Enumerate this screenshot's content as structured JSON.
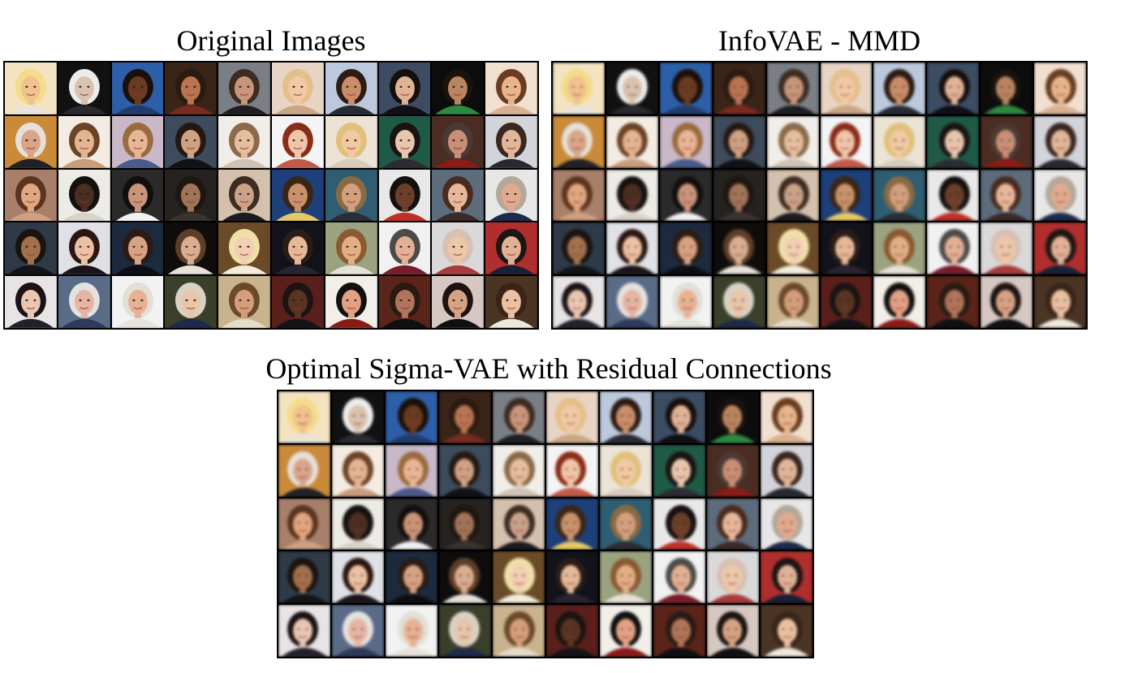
{
  "panels": [
    {
      "id": "original",
      "title": "Original Images",
      "blurred": false
    },
    {
      "id": "infovae",
      "title": "InfoVAE - MMD",
      "blurred": true
    },
    {
      "id": "sigmavae",
      "title": "Optimal Sigma-VAE with Residual Connections",
      "blurred": true
    }
  ],
  "faces": [
    {
      "bg": "#f3e3c0",
      "skin": "#f0c28e",
      "hair": "#f3dc8a",
      "shirt": "#e9e4d8"
    },
    {
      "bg": "#111111",
      "skin": "#d9c2ae",
      "hair": "#ececec",
      "shirt": "#2a2a30"
    },
    {
      "bg": "#2d5fa8",
      "skin": "#6a3b22",
      "hair": "#1b0f0a",
      "shirt": "#233b6b"
    },
    {
      "bg": "#3a2418",
      "skin": "#b97452",
      "hair": "#2b1a10",
      "shirt": "#7a2b20"
    },
    {
      "bg": "#7a7f86",
      "skin": "#c7967a",
      "hair": "#3d2b20",
      "shirt": "#1d1d22"
    },
    {
      "bg": "#e8d4c4",
      "skin": "#f1c9a6",
      "hair": "#e3c08a",
      "shirt": "#c9a583"
    },
    {
      "bg": "#bcc9dc",
      "skin": "#c98e69",
      "hair": "#2c1c14",
      "shirt": "#262a33"
    },
    {
      "bg": "#3b4c63",
      "skin": "#e0b395",
      "hair": "#160e0c",
      "shirt": "#0f0f14"
    },
    {
      "bg": "#0c0c0c",
      "skin": "#b88560",
      "hair": "#1a120c",
      "shirt": "#2c8a40"
    },
    {
      "bg": "#f1dfd0",
      "skin": "#e7b48c",
      "hair": "#6a3d20",
      "shirt": "#d9b08f"
    },
    {
      "bg": "#c98a3a",
      "skin": "#d9a58a",
      "hair": "#e5e0d8",
      "shirt": "#222226"
    },
    {
      "bg": "#f4ece2",
      "skin": "#e5b592",
      "hair": "#6b4326",
      "shirt": "#c99d7c"
    },
    {
      "bg": "#c8b8c8",
      "skin": "#e8b695",
      "hair": "#9a6b3f",
      "shirt": "#4a5a8a"
    },
    {
      "bg": "#3d4b5c",
      "skin": "#d0a183",
      "hair": "#241813",
      "shirt": "#121216"
    },
    {
      "bg": "#f1ede8",
      "skin": "#e5be9e",
      "hair": "#8a6a4a",
      "shirt": "#cfc3b5"
    },
    {
      "bg": "#f4f4f4",
      "skin": "#f0c5a8",
      "hair": "#8a2c1a",
      "shirt": "#c25a4a"
    },
    {
      "bg": "#eae3d6",
      "skin": "#f1c9a3",
      "hair": "#e0c07a",
      "shirt": "#d8cdbd"
    },
    {
      "bg": "#1f5a46",
      "skin": "#e8c5ae",
      "hair": "#1a1410",
      "shirt": "#2c2c34"
    },
    {
      "bg": "#4a2c22",
      "skin": "#c98e76",
      "hair": "#4a3a33",
      "shirt": "#8a1c18"
    },
    {
      "bg": "#d2d4da",
      "skin": "#e1b699",
      "hair": "#3a2620",
      "shirt": "#282830"
    },
    {
      "bg": "#a8806a",
      "skin": "#e0a67e",
      "hair": "#5a3420",
      "shirt": "#cfa082"
    },
    {
      "bg": "#ecebe6",
      "skin": "#4a2e22",
      "hair": "#151010",
      "shirt": "#d7d3c8"
    },
    {
      "bg": "#2a2a2a",
      "skin": "#c99478",
      "hair": "#120e0c",
      "shirt": "#f1f1f1"
    },
    {
      "bg": "#26221f",
      "skin": "#a07458",
      "hair": "#1e1612",
      "shirt": "#3a3430"
    },
    {
      "bg": "#d3c0ad",
      "skin": "#caa28a",
      "hair": "#3e2c22",
      "shirt": "#1c1c20"
    },
    {
      "bg": "#1d3f7a",
      "skin": "#c8926c",
      "hair": "#3b2516",
      "shirt": "#e4c866"
    },
    {
      "bg": "#2f5d72",
      "skin": "#d2a07c",
      "hair": "#8a6a42",
      "shirt": "#2a2e34"
    },
    {
      "bg": "#e9e8e8",
      "skin": "#6b3f28",
      "hair": "#151010",
      "shirt": "#c0302a"
    },
    {
      "bg": "#5d6c7d",
      "skin": "#e7b79b",
      "hair": "#4a2c1e",
      "shirt": "#3a2a2a"
    },
    {
      "bg": "#e7e7e7",
      "skin": "#e1aa8e",
      "hair": "#b5a89a",
      "shirt": "#1d2a4c"
    },
    {
      "bg": "#2e3a47",
      "skin": "#a3704c",
      "hair": "#1a1410",
      "shirt": "#121418"
    },
    {
      "bg": "#dfe1e6",
      "skin": "#ecc0a2",
      "hair": "#2a1612",
      "shirt": "#1a1418"
    },
    {
      "bg": "#1c2a3e",
      "skin": "#d7a282",
      "hair": "#2a1c14",
      "shirt": "#0e0e12"
    },
    {
      "bg": "#0f0d0b",
      "skin": "#d8ad90",
      "hair": "#5d3e28",
      "shirt": "#e7e1da"
    },
    {
      "bg": "#6b4a28",
      "skin": "#f2cfb2",
      "hair": "#f0e0a8",
      "shirt": "#f2ecd9"
    },
    {
      "bg": "#12121a",
      "skin": "#e5b898",
      "hair": "#2a1c16",
      "shirt": "#2a2430"
    },
    {
      "bg": "#9aa280",
      "skin": "#e1ae86",
      "hair": "#8a5a30",
      "shirt": "#e6e0d6"
    },
    {
      "bg": "#f1f1f1",
      "skin": "#e2b094",
      "hair": "#4e4a48",
      "shirt": "#7a1a2a"
    },
    {
      "bg": "#d9d9d9",
      "skin": "#ecc7a8",
      "hair": "#d9c0b5",
      "shirt": "#a83a3a"
    },
    {
      "bg": "#b02e2e",
      "skin": "#e1b196",
      "hair": "#1e1614",
      "shirt": "#182038"
    },
    {
      "bg": "#e8e4e6",
      "skin": "#e9c6b2",
      "hair": "#1a1214",
      "shirt": "#22202a"
    },
    {
      "bg": "#5a6b88",
      "skin": "#e7b4a4",
      "hair": "#e4e2de",
      "shirt": "#2e3a5a"
    },
    {
      "bg": "#f2f2f2",
      "skin": "#e7b294",
      "hair": "#e3ded6",
      "shirt": "#e6e2dc"
    },
    {
      "bg": "#3a3f2a",
      "skin": "#e8c6aa",
      "hair": "#d8d2c4",
      "shirt": "#1e2a4a"
    },
    {
      "bg": "#c9b28e",
      "skin": "#d49e7a",
      "hair": "#6a4a2a",
      "shirt": "#e5dbc9"
    },
    {
      "bg": "#5a1f1a",
      "skin": "#5a3422",
      "hair": "#1a1412",
      "shirt": "#141418"
    },
    {
      "bg": "#f2eee8",
      "skin": "#e3a184",
      "hair": "#101010",
      "shirt": "#8a1a1a"
    },
    {
      "bg": "#5a2418",
      "skin": "#b0745a",
      "hair": "#2a1a14",
      "shirt": "#101012"
    },
    {
      "bg": "#d6c7c2",
      "skin": "#d6a284",
      "hair": "#1d1412",
      "shirt": "#101012"
    },
    {
      "bg": "#4a3424",
      "skin": "#eac0a2",
      "hair": "#3a2418",
      "shirt": "#efe8de"
    }
  ]
}
